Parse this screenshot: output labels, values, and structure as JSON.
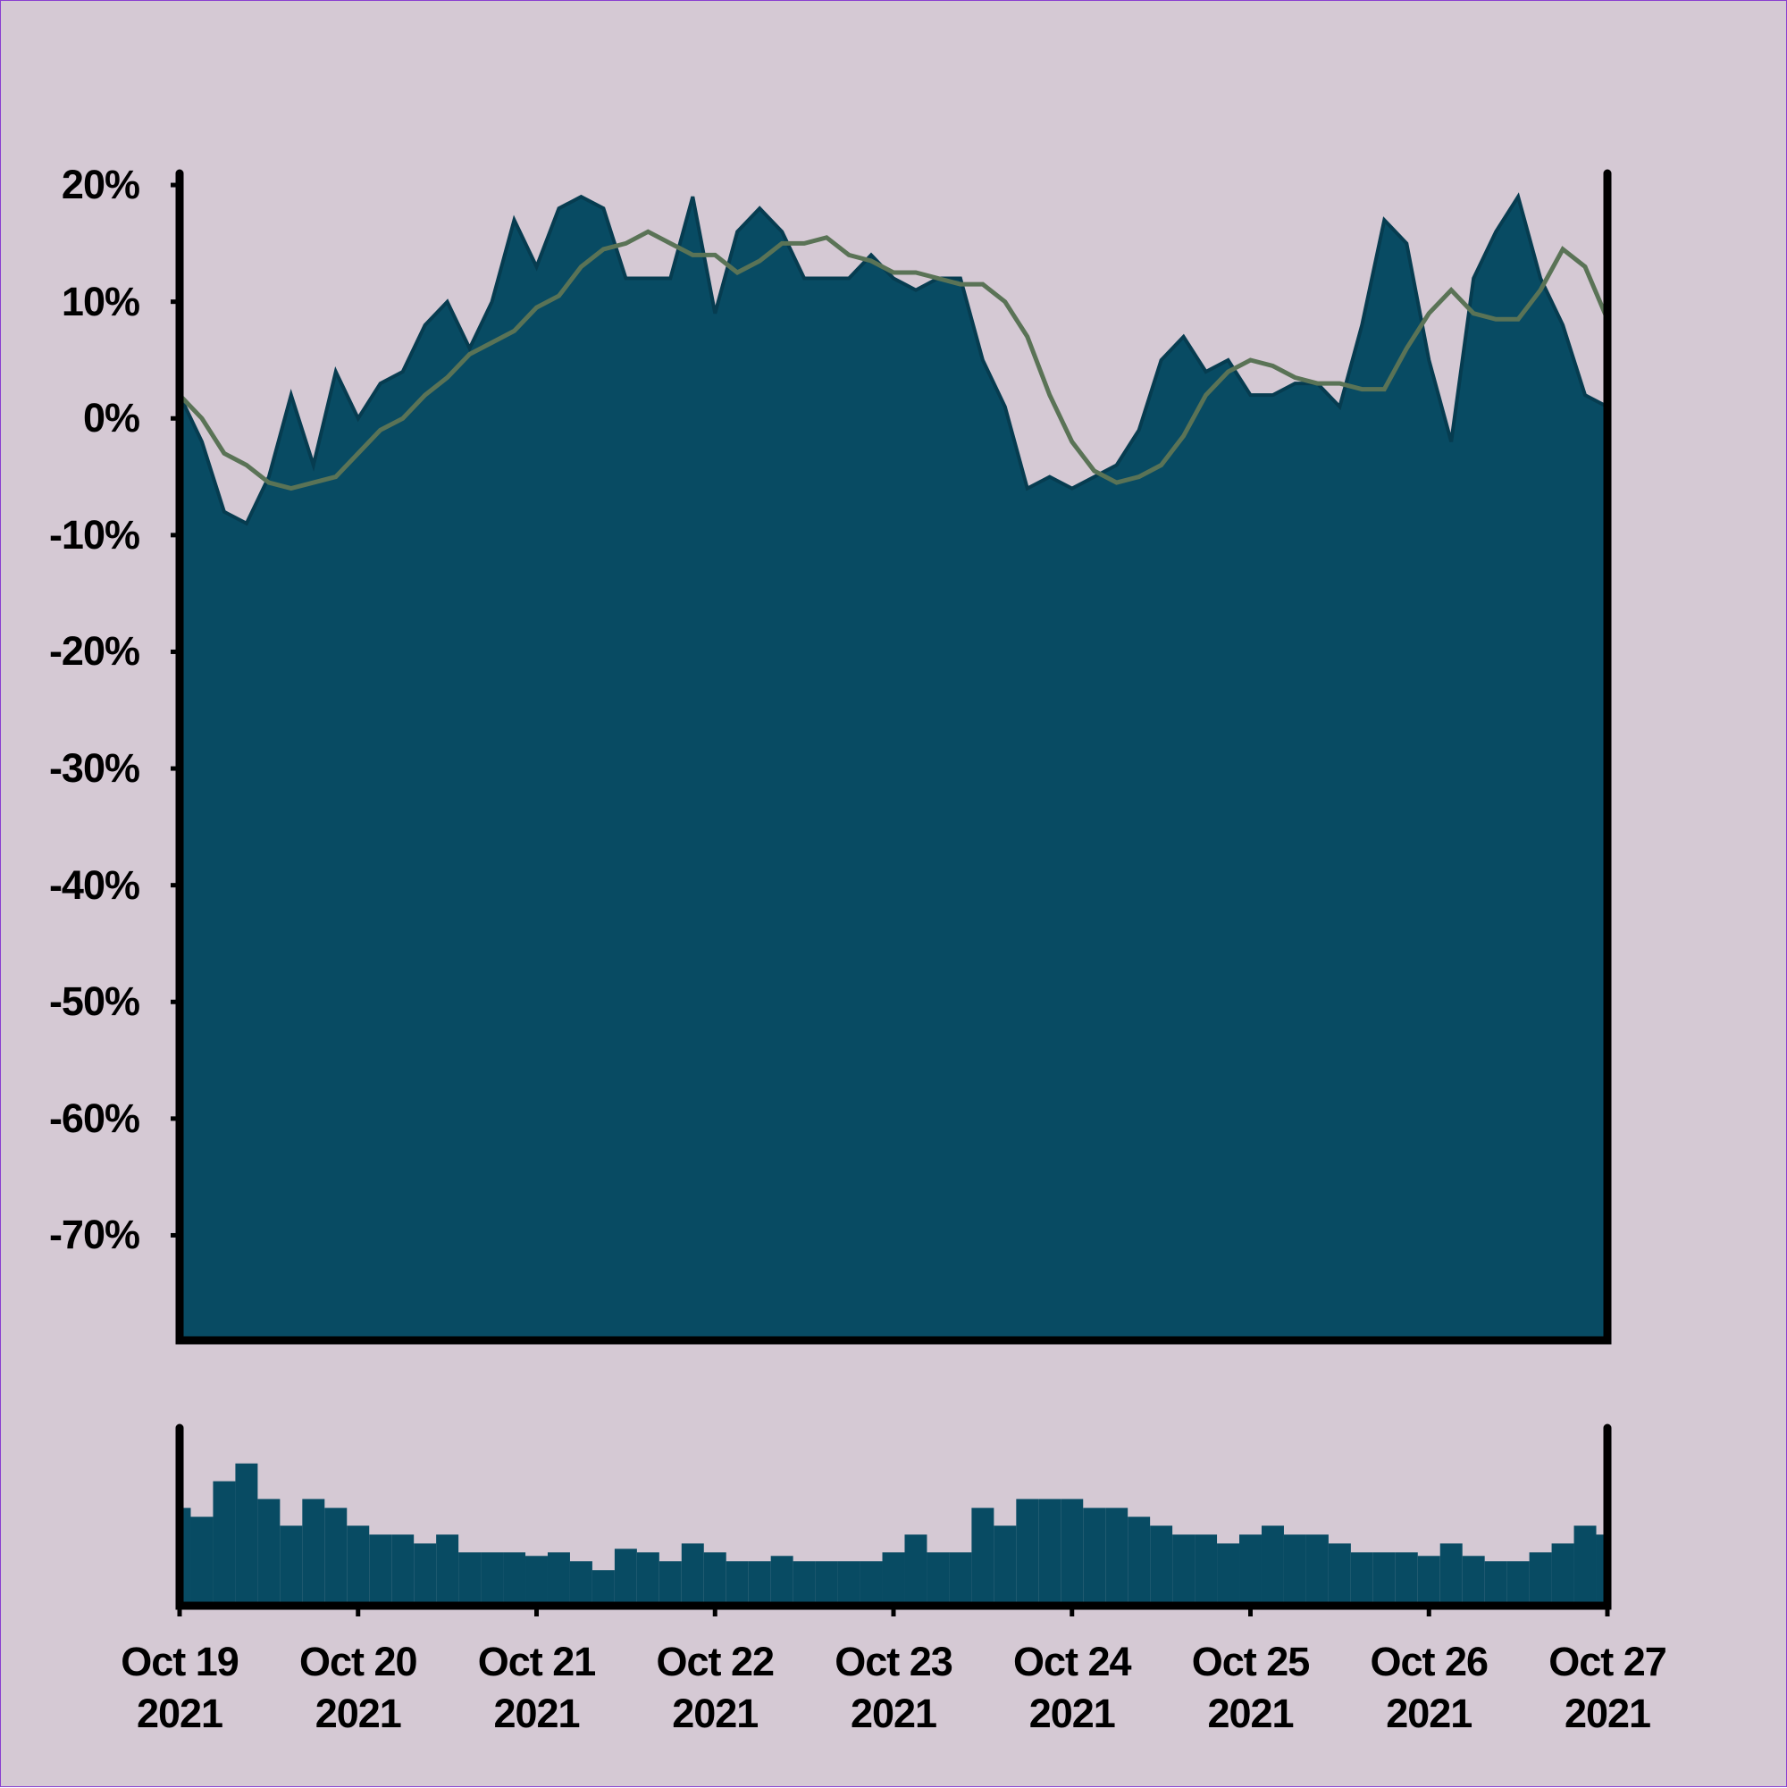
{
  "chart_data": [
    {
      "type": "area",
      "x": [
        "2021-10-19 00:00",
        "2021-10-19 03:00",
        "2021-10-19 06:00",
        "2021-10-19 09:00",
        "2021-10-19 12:00",
        "2021-10-19 15:00",
        "2021-10-19 18:00",
        "2021-10-19 21:00",
        "2021-10-20 00:00",
        "2021-10-20 03:00",
        "2021-10-20 06:00",
        "2021-10-20 09:00",
        "2021-10-20 12:00",
        "2021-10-20 15:00",
        "2021-10-20 18:00",
        "2021-10-20 21:00",
        "2021-10-21 00:00",
        "2021-10-21 03:00",
        "2021-10-21 06:00",
        "2021-10-21 09:00",
        "2021-10-21 12:00",
        "2021-10-21 15:00",
        "2021-10-21 18:00",
        "2021-10-21 21:00",
        "2021-10-22 00:00",
        "2021-10-22 03:00",
        "2021-10-22 06:00",
        "2021-10-22 09:00",
        "2021-10-22 12:00",
        "2021-10-22 15:00",
        "2021-10-22 18:00",
        "2021-10-22 21:00",
        "2021-10-23 00:00",
        "2021-10-23 03:00",
        "2021-10-23 06:00",
        "2021-10-23 09:00",
        "2021-10-23 12:00",
        "2021-10-23 15:00",
        "2021-10-23 18:00",
        "2021-10-23 21:00",
        "2021-10-24 00:00",
        "2021-10-24 03:00",
        "2021-10-24 06:00",
        "2021-10-24 09:00",
        "2021-10-24 12:00",
        "2021-10-24 15:00",
        "2021-10-24 18:00",
        "2021-10-24 21:00",
        "2021-10-25 00:00",
        "2021-10-25 03:00",
        "2021-10-25 06:00",
        "2021-10-25 09:00",
        "2021-10-25 12:00",
        "2021-10-25 15:00",
        "2021-10-25 18:00",
        "2021-10-25 21:00",
        "2021-10-26 00:00",
        "2021-10-26 03:00",
        "2021-10-26 06:00",
        "2021-10-26 09:00",
        "2021-10-26 12:00",
        "2021-10-26 15:00",
        "2021-10-26 18:00",
        "2021-10-26 21:00",
        "2021-10-27 00:00"
      ],
      "series": [
        {
          "type": "area",
          "color": "#084b63",
          "values": [
            2,
            -2,
            -8,
            -9,
            -5,
            2,
            -4,
            4,
            0,
            3,
            4,
            8,
            10,
            6,
            10,
            17,
            13,
            18,
            19,
            18,
            12,
            12,
            12,
            19,
            9,
            16,
            18,
            16,
            12,
            12,
            12,
            14,
            12,
            11,
            12,
            12,
            5,
            1,
            -6,
            -5,
            -6,
            -5,
            -4,
            -1,
            5,
            7,
            4,
            5,
            2,
            2,
            3,
            3,
            1,
            8,
            17,
            15,
            5,
            -2,
            12,
            16,
            19,
            12,
            8,
            2,
            1
          ]
        },
        {
          "type": "line",
          "color": "#5a7356",
          "values": [
            2,
            0,
            -3,
            -4,
            -5.5,
            -6,
            -5.5,
            -5,
            -3,
            -1,
            0,
            2,
            3.5,
            5.5,
            6.5,
            7.5,
            9.5,
            10.5,
            13,
            14.5,
            15,
            16,
            15,
            14,
            14,
            12.5,
            13.5,
            15,
            15,
            15.5,
            14,
            13.5,
            12.5,
            12.5,
            12,
            11.5,
            11.5,
            10,
            7,
            2,
            -2,
            -4.5,
            -5.5,
            -5,
            -4,
            -1.5,
            2,
            4,
            5,
            4.5,
            3.5,
            3,
            3,
            2.5,
            2.5,
            6,
            9,
            11,
            9,
            8.5,
            8.5,
            11,
            14.5,
            13,
            8.5
          ]
        }
      ],
      "xlim": [
        "2021-10-19",
        "2021-10-27"
      ],
      "ylim": [
        -79,
        21
      ],
      "yticks": [
        {
          "value": 20,
          "label": "20%"
        },
        {
          "value": 10,
          "label": "10%"
        },
        {
          "value": 0,
          "label": "0%"
        },
        {
          "value": -10,
          "label": "-10%"
        },
        {
          "value": -20,
          "label": "-20%"
        },
        {
          "value": -30,
          "label": "-30%"
        },
        {
          "value": -40,
          "label": "-40%"
        },
        {
          "value": -50,
          "label": "-50%"
        },
        {
          "value": -60,
          "label": "-60%"
        },
        {
          "value": -70,
          "label": "-70%"
        }
      ]
    },
    {
      "type": "bar",
      "color": "#084b63",
      "x": [
        "2021-10-19 00:00",
        "2021-10-19 03:00",
        "2021-10-19 06:00",
        "2021-10-19 09:00",
        "2021-10-19 12:00",
        "2021-10-19 15:00",
        "2021-10-19 18:00",
        "2021-10-19 21:00",
        "2021-10-20 00:00",
        "2021-10-20 03:00",
        "2021-10-20 06:00",
        "2021-10-20 09:00",
        "2021-10-20 12:00",
        "2021-10-20 15:00",
        "2021-10-20 18:00",
        "2021-10-20 21:00",
        "2021-10-21 00:00",
        "2021-10-21 03:00",
        "2021-10-21 06:00",
        "2021-10-21 09:00",
        "2021-10-21 12:00",
        "2021-10-21 15:00",
        "2021-10-21 18:00",
        "2021-10-21 21:00",
        "2021-10-22 00:00",
        "2021-10-22 03:00",
        "2021-10-22 06:00",
        "2021-10-22 09:00",
        "2021-10-22 12:00",
        "2021-10-22 15:00",
        "2021-10-22 18:00",
        "2021-10-22 21:00",
        "2021-10-23 00:00",
        "2021-10-23 03:00",
        "2021-10-23 06:00",
        "2021-10-23 09:00",
        "2021-10-23 12:00",
        "2021-10-23 15:00",
        "2021-10-23 18:00",
        "2021-10-23 21:00",
        "2021-10-24 00:00",
        "2021-10-24 03:00",
        "2021-10-24 06:00",
        "2021-10-24 09:00",
        "2021-10-24 12:00",
        "2021-10-24 15:00",
        "2021-10-24 18:00",
        "2021-10-24 21:00",
        "2021-10-25 00:00",
        "2021-10-25 03:00",
        "2021-10-25 06:00",
        "2021-10-25 09:00",
        "2021-10-25 12:00",
        "2021-10-25 15:00",
        "2021-10-25 18:00",
        "2021-10-25 21:00",
        "2021-10-26 00:00",
        "2021-10-26 03:00",
        "2021-10-26 06:00",
        "2021-10-26 09:00",
        "2021-10-26 12:00",
        "2021-10-26 15:00",
        "2021-10-26 18:00",
        "2021-10-26 21:00",
        "2021-10-27 00:00"
      ],
      "values": [
        55,
        50,
        70,
        80,
        60,
        45,
        60,
        55,
        45,
        40,
        40,
        35,
        40,
        30,
        30,
        30,
        28,
        30,
        25,
        20,
        32,
        30,
        25,
        35,
        30,
        25,
        25,
        28,
        25,
        25,
        25,
        25,
        30,
        40,
        30,
        30,
        55,
        45,
        60,
        60,
        60,
        55,
        55,
        50,
        45,
        40,
        40,
        35,
        40,
        45,
        40,
        40,
        35,
        30,
        30,
        30,
        28,
        35,
        28,
        25,
        25,
        30,
        35,
        45,
        40
      ],
      "xlim": [
        "2021-10-19",
        "2021-10-27"
      ],
      "ylim": [
        0,
        100
      ],
      "xticks": [
        {
          "value": "2021-10-19",
          "label": "Oct 19\n2021"
        },
        {
          "value": "2021-10-20",
          "label": "Oct 20\n2021"
        },
        {
          "value": "2021-10-21",
          "label": "Oct 21\n2021"
        },
        {
          "value": "2021-10-22",
          "label": "Oct 22\n2021"
        },
        {
          "value": "2021-10-23",
          "label": "Oct 23\n2021"
        },
        {
          "value": "2021-10-24",
          "label": "Oct 24\n2021"
        },
        {
          "value": "2021-10-25",
          "label": "Oct 25\n2021"
        },
        {
          "value": "2021-10-26",
          "label": "Oct 26\n2021"
        },
        {
          "value": "2021-10-27",
          "label": "Oct 27\n2021"
        }
      ]
    }
  ]
}
